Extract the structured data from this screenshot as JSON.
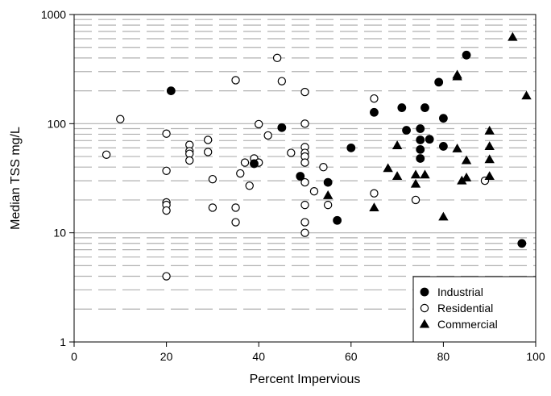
{
  "chart_data": {
    "type": "scatter",
    "xlabel": "Percent Impervious",
    "ylabel": "Median TSS mg/L",
    "xlim": [
      0,
      100
    ],
    "ylim": [
      1,
      1000
    ],
    "y_scale": "log",
    "x_ticks": [
      0,
      20,
      40,
      60,
      80,
      100
    ],
    "y_ticks": [
      1,
      10,
      100,
      1000
    ],
    "grid": "horizontal dashed minor, solid major",
    "legend_position": "bottom-right",
    "series": [
      {
        "name": "Industrial",
        "marker": "filled-circle",
        "points": [
          [
            21,
            200
          ],
          [
            39,
            43
          ],
          [
            45,
            92
          ],
          [
            49,
            33
          ],
          [
            55,
            29
          ],
          [
            57,
            13
          ],
          [
            60,
            60
          ],
          [
            65,
            127
          ],
          [
            71,
            140
          ],
          [
            72,
            87
          ],
          [
            75,
            90
          ],
          [
            75,
            71
          ],
          [
            75,
            58
          ],
          [
            75,
            48
          ],
          [
            76,
            140
          ],
          [
            77,
            72
          ],
          [
            79,
            240
          ],
          [
            80,
            112
          ],
          [
            80,
            62
          ],
          [
            85,
            425
          ],
          [
            97,
            8
          ]
        ]
      },
      {
        "name": "Residential",
        "marker": "open-circle",
        "points": [
          [
            7,
            52
          ],
          [
            10,
            110
          ],
          [
            20,
            81
          ],
          [
            20,
            37
          ],
          [
            20,
            19
          ],
          [
            20,
            18
          ],
          [
            20,
            16
          ],
          [
            20,
            4
          ],
          [
            25,
            64
          ],
          [
            25,
            56
          ],
          [
            25,
            53
          ],
          [
            25,
            46
          ],
          [
            29,
            71
          ],
          [
            29,
            55
          ],
          [
            30,
            31
          ],
          [
            30,
            17
          ],
          [
            35,
            250
          ],
          [
            35,
            17
          ],
          [
            35,
            12.5
          ],
          [
            36,
            35
          ],
          [
            37,
            44
          ],
          [
            38,
            27
          ],
          [
            39,
            48
          ],
          [
            40,
            44
          ],
          [
            40,
            99
          ],
          [
            42,
            78
          ],
          [
            44,
            400
          ],
          [
            45,
            245
          ],
          [
            45,
            92
          ],
          [
            47,
            54
          ],
          [
            50,
            195
          ],
          [
            50,
            100
          ],
          [
            50,
            61
          ],
          [
            50,
            54
          ],
          [
            50,
            50
          ],
          [
            50,
            44
          ],
          [
            50,
            29
          ],
          [
            50,
            18
          ],
          [
            50,
            12.5
          ],
          [
            50,
            10
          ],
          [
            52,
            24
          ],
          [
            54,
            40
          ],
          [
            55,
            18
          ],
          [
            65,
            170
          ],
          [
            65,
            23
          ],
          [
            74,
            20
          ],
          [
            89,
            30
          ]
        ]
      },
      {
        "name": "Commercial",
        "marker": "filled-triangle",
        "points": [
          [
            55,
            22
          ],
          [
            65,
            17
          ],
          [
            68,
            39
          ],
          [
            70,
            63
          ],
          [
            70,
            33
          ],
          [
            74,
            34
          ],
          [
            74,
            28
          ],
          [
            76,
            34
          ],
          [
            80,
            14
          ],
          [
            83,
            270
          ],
          [
            83,
            280
          ],
          [
            83,
            59
          ],
          [
            84,
            30
          ],
          [
            85,
            46
          ],
          [
            85,
            32
          ],
          [
            90,
            86
          ],
          [
            90,
            62
          ],
          [
            90,
            47
          ],
          [
            90,
            33
          ],
          [
            95,
            620
          ],
          [
            98,
            180
          ]
        ]
      }
    ]
  }
}
